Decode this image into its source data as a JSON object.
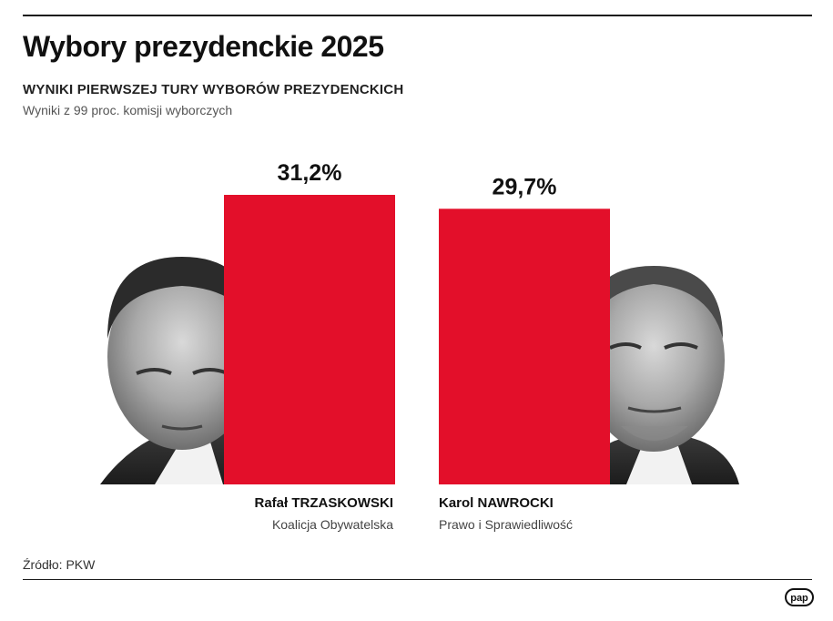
{
  "header": {
    "title": "Wybory prezydenckie 2025",
    "subtitle": "WYNIKI PIERWSZEJ TURY WYBORÓW PREZYDENCKICH",
    "note": "Wyniki z 99 proc. komisji wyborczych"
  },
  "footer": {
    "source": "Źródło: PKW",
    "logo_text": "pap"
  },
  "colors": {
    "bar": "#e30f2a",
    "text": "#111111",
    "muted": "#444444"
  },
  "chart_data": {
    "type": "bar",
    "categories": [
      "Rafał TRZASKOWSKI",
      "Karol NAWROCKI"
    ],
    "parties": [
      "Koalicja Obywatelska",
      "Prawo i Sprawiedliwość"
    ],
    "values": [
      31.2,
      29.7
    ],
    "value_labels": [
      "31,2%",
      "29,7%"
    ],
    "unit": "%",
    "grid": false,
    "legend": "none"
  }
}
